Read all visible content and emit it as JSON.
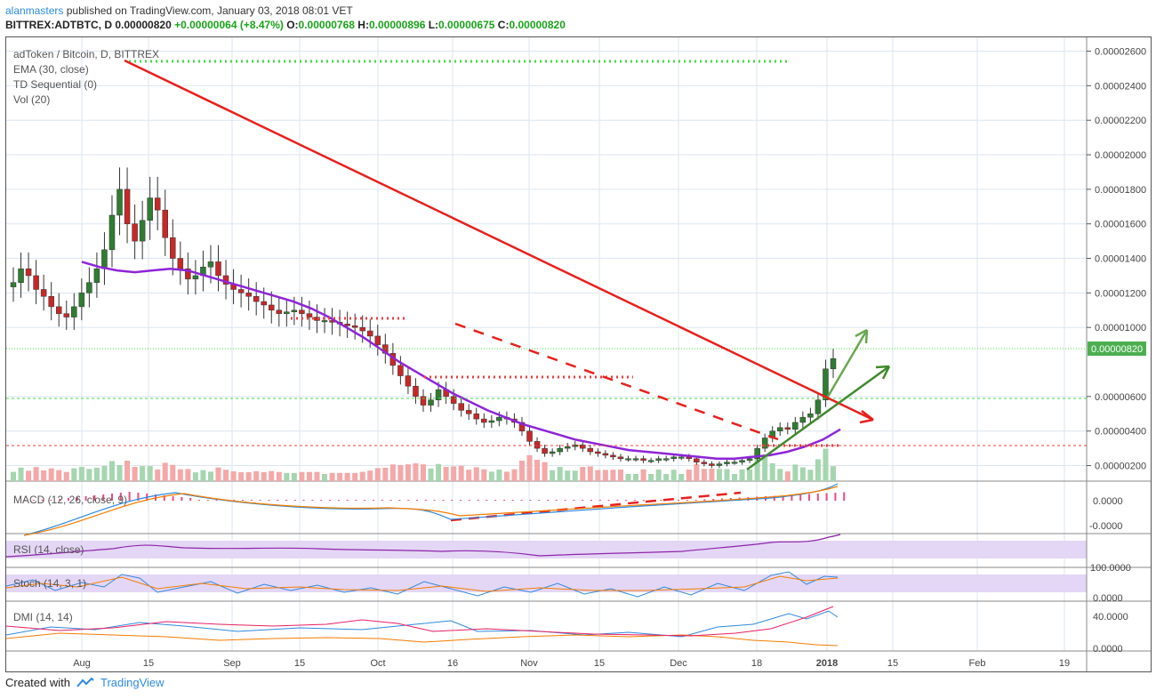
{
  "header": {
    "username": "alanmasters",
    "published_text": "published on TradingView.com, January 03, 2018 08:01 VET"
  },
  "ohlc": {
    "symbol": "BITTREX:ADTBTC, D",
    "last": "0.00000820",
    "change": "+0.00000064 (+8.47%)",
    "o_label": "O:",
    "o": "0.00000768",
    "h_label": "H:",
    "h": "0.00000896",
    "l_label": "L:",
    "l": "0.00000675",
    "c_label": "C:",
    "c": "0.00000820"
  },
  "legend": {
    "title": "adToken / Bitcoin, D, BITTREX",
    "ema": "EMA (30, close)",
    "td": "TD Sequential (0)",
    "vol": "Vol (20)"
  },
  "panels": {
    "macd": "MACD (12, 26, close, 9)",
    "rsi": "RSI (14, close)",
    "stoch": "Stoch (14, 3, 1)",
    "dmi": "DMI (14, 14)"
  },
  "price_axis": [
    "0.00002600",
    "0.00002400",
    "0.00002200",
    "0.00002000",
    "0.00001800",
    "0.00001600",
    "0.00001400",
    "0.00001200",
    "0.00001000",
    "0.00000600",
    "0.00000400",
    "0.00000200"
  ],
  "last_price_label": "0.00000820",
  "macd_axis": [
    "0.0000",
    "-0.0000"
  ],
  "stoch_axis": [
    "100.0000",
    "0.0000"
  ],
  "dmi_axis": [
    "40.0000",
    "0.0000"
  ],
  "time_axis": [
    "Aug",
    "15",
    "Sep",
    "15",
    "Oct",
    "16",
    "Nov",
    "15",
    "Dec",
    "18",
    "2018",
    "15",
    "Feb",
    "19"
  ],
  "footer": {
    "created_with": "Created with",
    "brand": "TradingView"
  },
  "colors": {
    "bull": "#2e7d32",
    "bear": "#c62828",
    "ema": "#8e24d8",
    "trend_red": "#e8201c",
    "arrow_green": "#3f8a2a",
    "dotted_green": "#44d944",
    "dotted_red": "#e84040",
    "price_tag_bg": "#4caf50"
  },
  "chart_data": {
    "type": "candlestick",
    "title": "adToken / Bitcoin, D, BITTREX",
    "ylim": [
      1.1e-06,
      2.68e-05
    ],
    "close": [
      1.26e-05,
      1.34e-05,
      1.3e-05,
      1.22e-05,
      1.18e-05,
      1.12e-05,
      1.08e-05,
      1.06e-05,
      1.12e-05,
      1.2e-05,
      1.26e-05,
      1.34e-05,
      1.45e-05,
      1.65e-05,
      1.8e-05,
      1.6e-05,
      1.5e-05,
      1.62e-05,
      1.75e-05,
      1.68e-05,
      1.52e-05,
      1.4e-05,
      1.34e-05,
      1.28e-05,
      1.3e-05,
      1.35e-05,
      1.38e-05,
      1.3e-05,
      1.25e-05,
      1.22e-05,
      1.2e-05,
      1.18e-05,
      1.15e-05,
      1.13e-05,
      1.1e-05,
      1.08e-05,
      1.09e-05,
      1.1e-05,
      1.08e-05,
      1.06e-05,
      1.04e-05,
      1.04e-05,
      1.03e-05,
      1.02e-05,
      1.01e-05,
      1e-05,
      9.8e-06,
      9.5e-06,
      9e-06,
      8.5e-06,
      7.8e-06,
      7.2e-06,
      6.6e-06,
      6e-06,
      5.5e-06,
      5.8e-06,
      6.4e-06,
      6e-06,
      5.6e-06,
      5.2e-06,
      5e-06,
      4.7e-06,
      4.5e-06,
      4.6e-06,
      4.8e-06,
      4.7e-06,
      4.5e-06,
      4e-06,
      3.4e-06,
      3e-06,
      2.7e-06,
      2.8e-06,
      3e-06,
      3.1e-06,
      3.2e-06,
      3e-06,
      2.8e-06,
      2.7e-06,
      2.6e-06,
      2.5e-06,
      2.4e-06,
      2.4e-06,
      2.4e-06,
      2.3e-06,
      2.3e-06,
      2.4e-06,
      2.4e-06,
      2.5e-06,
      2.5e-06,
      2.4e-06,
      2.2e-06,
      2.1e-06,
      2e-06,
      2.1e-06,
      2.2e-06,
      2.2e-06,
      2.3e-06,
      2.4e-06,
      3e-06,
      3.6e-06,
      4e-06,
      4.2e-06,
      4.1e-06,
      4.5e-06,
      4.8e-06,
      5e-06,
      5.8e-06,
      7.6e-06,
      8.2e-06
    ],
    "ema30": [
      1.38e-05,
      1.35e-05,
      1.33e-05,
      1.32e-05,
      1.33e-05,
      1.34e-05,
      1.33e-05,
      1.3e-05,
      1.27e-05,
      1.24e-05,
      1.21e-05,
      1.18e-05,
      1.15e-05,
      1.11e-05,
      1.06e-05,
      1e-05,
      9.4e-06,
      8.7e-06,
      8e-06,
      7.4e-06,
      6.8e-06,
      6.2e-06,
      5.7e-06,
      5.2e-06,
      4.8e-06,
      4.4e-06,
      4.1e-06,
      3.8e-06,
      3.5e-06,
      3.3e-06,
      3.1e-06,
      2.9e-06,
      2.8e-06,
      2.7e-06,
      2.6e-06,
      2.5e-06,
      2.4e-06,
      2.4e-06,
      2.5e-06,
      2.6e-06,
      2.8e-06,
      3.1e-06,
      3.5e-06,
      4.1e-06
    ]
  }
}
